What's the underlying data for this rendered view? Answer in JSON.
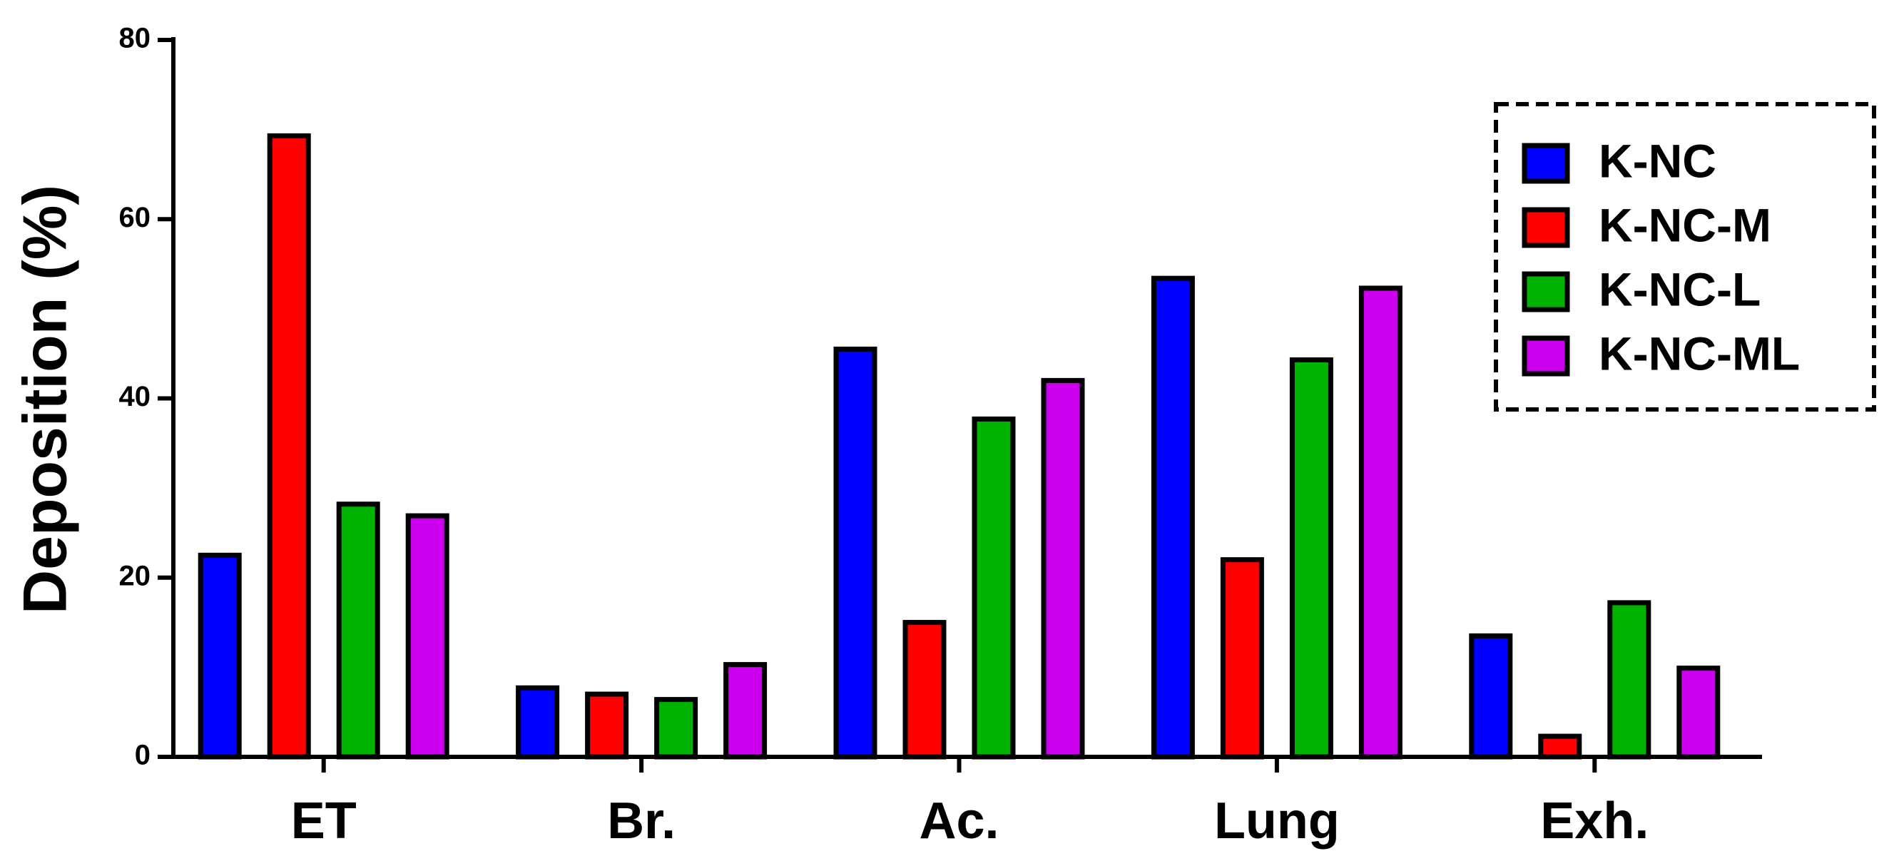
{
  "chart_data": {
    "type": "bar",
    "ylabel": "Deposition (%)",
    "categories": [
      "ET",
      "Br.",
      "Ac.",
      "Lung",
      "Exh."
    ],
    "series": [
      {
        "name": "K-NC",
        "color": "#0000ff",
        "values": [
          22.5,
          7.7,
          45.5,
          53.4,
          13.5
        ]
      },
      {
        "name": "K-NC-M",
        "color": "#ff0000",
        "values": [
          69.3,
          7.0,
          15.0,
          22.0,
          2.3
        ]
      },
      {
        "name": "K-NC-L",
        "color": "#00b300",
        "values": [
          28.2,
          6.4,
          37.7,
          44.3,
          17.2
        ]
      },
      {
        "name": "K-NC-ML",
        "color": "#cc00ee",
        "values": [
          26.9,
          10.3,
          42.0,
          52.3,
          9.9
        ]
      }
    ],
    "ylim": [
      0,
      80
    ],
    "yticks": [
      0,
      20,
      40,
      60,
      80
    ],
    "legend": "upper right"
  }
}
